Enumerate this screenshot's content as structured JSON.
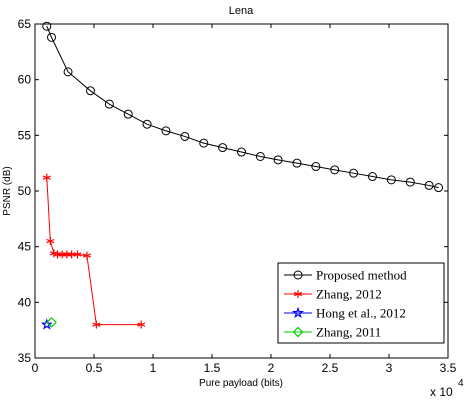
{
  "chart_data": {
    "type": "line",
    "title": "Lena",
    "xlabel": "Pure payload (bits)",
    "ylabel": "PSNR (dB)",
    "x_multiplier_label": "x 10",
    "x_multiplier_exp": "4",
    "xlim": [
      0,
      35000
    ],
    "ylim": [
      35,
      65
    ],
    "xticks": [
      0,
      5000,
      10000,
      15000,
      20000,
      25000,
      30000,
      35000
    ],
    "xtick_labels": [
      "0",
      "0.5",
      "1",
      "1.5",
      "2",
      "2.5",
      "3",
      "3.5"
    ],
    "yticks": [
      35,
      40,
      45,
      50,
      55,
      60,
      65
    ],
    "ytick_labels": [
      "35",
      "40",
      "45",
      "50",
      "55",
      "60",
      "65"
    ],
    "grid": false,
    "legend_position": "bottom-right",
    "series": [
      {
        "name": "Proposed method",
        "color": "#000000",
        "marker": "circle",
        "x": [
          1000,
          1400,
          2800,
          4700,
          6300,
          7900,
          9500,
          11100,
          12700,
          14300,
          15900,
          17500,
          19100,
          20600,
          22200,
          23800,
          25400,
          27000,
          28600,
          30200,
          31800,
          33400,
          34200
        ],
        "y": [
          64.8,
          63.8,
          60.7,
          59.0,
          57.8,
          56.9,
          56.0,
          55.4,
          54.9,
          54.3,
          53.9,
          53.5,
          53.1,
          52.8,
          52.5,
          52.2,
          51.9,
          51.6,
          51.3,
          51.0,
          50.8,
          50.5,
          50.3
        ]
      },
      {
        "name": "Zhang, 2012",
        "color": "#ff0000",
        "marker": "star",
        "x": [
          1000,
          1300,
          1600,
          1900,
          2300,
          2700,
          3100,
          3600,
          4400,
          5200,
          9000
        ],
        "y": [
          51.2,
          45.5,
          44.4,
          44.3,
          44.3,
          44.3,
          44.3,
          44.3,
          44.2,
          38.0,
          38.0
        ]
      },
      {
        "name": "Hong et al., 2012",
        "color": "#0000ff",
        "marker": "pentagram",
        "x": [
          1000
        ],
        "y": [
          38.0
        ]
      },
      {
        "name": "Zhang, 2011",
        "color": "#00cc00",
        "marker": "diamond",
        "x": [
          1400
        ],
        "y": [
          38.2
        ]
      }
    ]
  }
}
